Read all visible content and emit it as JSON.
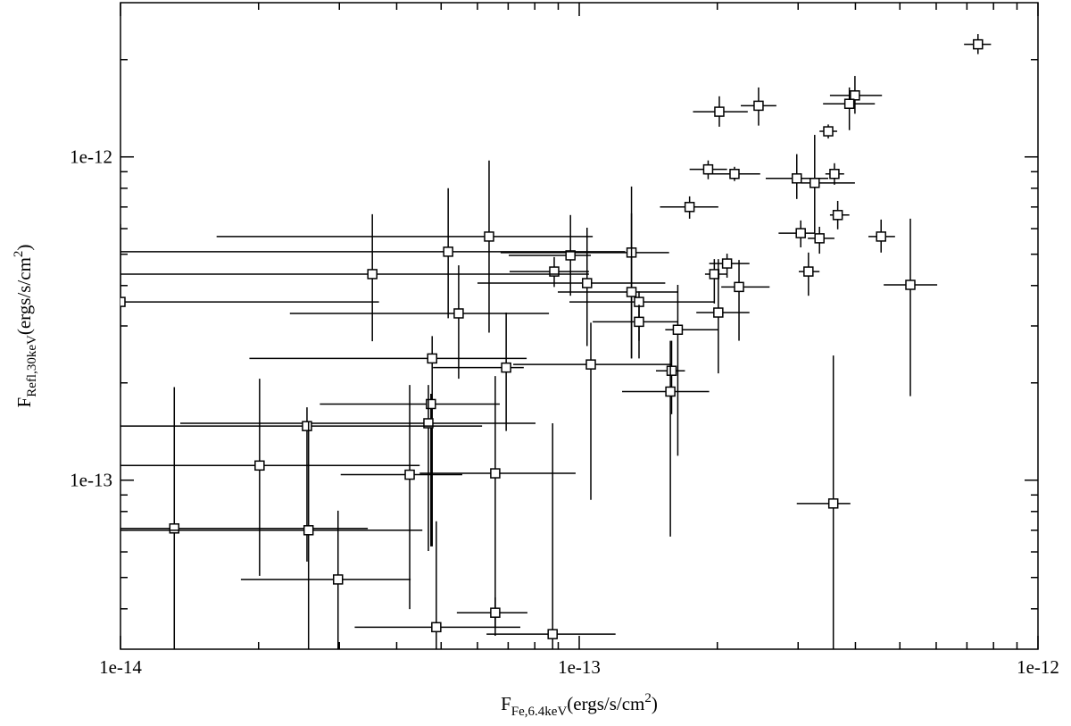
{
  "chart_data": {
    "type": "scatter",
    "xlabel": {
      "main": "F",
      "sub": "Fe,6.4keV",
      "unit": "(ergs/s/cm",
      "sup": "2",
      "close": ")"
    },
    "ylabel": {
      "main": "F",
      "sub": "Refl,30keV",
      "unit": "(ergs/s/cm",
      "sup": "2",
      "close": ")"
    },
    "xscale": "log",
    "yscale": "log",
    "xlim": [
      1e-14,
      1e-12
    ],
    "ylim": [
      3e-14,
      3e-12
    ],
    "xticks": [
      1e-14,
      1e-13,
      1e-12
    ],
    "yticks": [
      1e-13,
      1e-12
    ],
    "xminorticks": [
      2e-14,
      3e-14,
      4e-14,
      5e-14,
      6e-14,
      7e-14,
      8e-14,
      9e-14,
      2e-13,
      3e-13,
      4e-13,
      5e-13,
      6e-13,
      7e-13,
      8e-13,
      9e-13
    ],
    "yminorticks": [
      4e-14,
      5e-14,
      6e-14,
      7e-14,
      8e-14,
      9e-14,
      2e-13,
      3e-13,
      4e-13,
      5e-13,
      6e-13,
      7e-13,
      8e-13,
      9e-13,
      2e-12
    ],
    "color": "#000000",
    "x": [
      7.4e-13,
      2.02e-13,
      2.46e-13,
      3.99e-13,
      3.88e-13,
      3.49e-13,
      1.91e-13,
      2.18e-13,
      2.98e-13,
      3.6e-13,
      3.26e-13,
      1.74e-13,
      3.66e-13,
      3.04e-13,
      3.34e-13,
      4.55e-13,
      2.1e-13,
      1.97e-13,
      3.16e-13,
      5.27e-13,
      2.23e-13,
      2.01e-13,
      3.58e-13,
      1.64e-13,
      1.59e-13,
      1.58e-13,
      1.3e-13,
      1.3e-13,
      1.35e-13,
      1.35e-13,
      9.57e-14,
      8.82e-14,
      1.04e-13,
      1.06e-13,
      6.36e-14,
      5.18e-14,
      3.54e-14,
      5.46e-14,
      1e-14,
      6.93e-14,
      4.78e-14,
      4.75e-14,
      4.69e-14,
      2.55e-14,
      2.01e-14,
      4.27e-14,
      6.56e-14,
      1.31e-14,
      2.57e-14,
      2.98e-14,
      4.88e-14,
      6.56e-14,
      8.75e-14
    ],
    "x_low": [
      6.9e-13,
      1.77e-13,
      2.25e-13,
      3.52e-13,
      3.4e-13,
      3.34e-13,
      1.74e-13,
      1.88e-13,
      2.55e-13,
      3.44e-13,
      3.05e-13,
      1.5e-13,
      3.52e-13,
      2.72e-13,
      3.15e-13,
      4.27e-13,
      1.92e-13,
      1.88e-13,
      3.01e-13,
      4.61e-13,
      2.04e-13,
      1.8e-13,
      2.98e-13,
      1.54e-13,
      1.47e-13,
      1.24e-13,
      6.74e-14,
      8.98e-14,
      9.52e-14,
      1.07e-13,
      7.02e-14,
      7.05e-14,
      6e-14,
      7.18e-14,
      1.62e-14,
      1e-14,
      1e-14,
      2.34e-14,
      1e-14,
      4.8e-14,
      1.91e-14,
      2.72e-14,
      1.35e-14,
      1e-14,
      1e-14,
      3.02e-14,
      4.49e-14,
      1e-14,
      1e-14,
      1.83e-14,
      3.24e-14,
      5.41e-14,
      6.28e-14
    ],
    "x_high": [
      7.9e-13,
      2.33e-13,
      2.69e-13,
      4.57e-13,
      4.41e-13,
      3.65e-13,
      2.1e-13,
      2.48e-13,
      3.49e-13,
      3.78e-13,
      3.99e-13,
      2.01e-13,
      3.88e-13,
      3.26e-13,
      3.6e-13,
      4.88e-13,
      2.35e-13,
      2.1e-13,
      3.34e-13,
      6.03e-13,
      2.6e-13,
      2.35e-13,
      3.9e-13,
      2.01e-13,
      1.7e-13,
      1.92e-13,
      1.57e-13,
      1.64e-13,
      1.97e-13,
      1.64e-13,
      1.06e-13,
      1.05e-13,
      1.54e-13,
      1.59e-13,
      1.07e-13,
      1.26e-13,
      1.05e-13,
      8.59e-14,
      3.66e-14,
      7.57e-14,
      7.68e-14,
      6.71e-14,
      8.03e-14,
      6.14e-14,
      4.49e-14,
      5.56e-14,
      9.82e-14,
      3.46e-14,
      4.55e-14,
      4.29e-14,
      7.44e-14,
      7.71e-14,
      1.2e-13
    ],
    "values": [
      2.23e-12,
      1.38e-12,
      1.44e-12,
      1.55e-12,
      1.46e-12,
      1.2e-12,
      9.15e-13,
      8.86e-13,
      8.58e-13,
      8.86e-13,
      8.31e-13,
      7e-13,
      6.61e-13,
      5.81e-13,
      5.6e-13,
      5.67e-13,
      4.68e-13,
      4.34e-13,
      4.42e-13,
      4.02e-13,
      3.96e-13,
      3.3e-13,
      8.47e-14,
      2.92e-13,
      2.18e-13,
      1.88e-13,
      5.06e-13,
      3.82e-13,
      3.56e-13,
      3.09e-13,
      4.96e-13,
      4.42e-13,
      4.07e-13,
      2.28e-13,
      5.67e-13,
      5.09e-13,
      4.34e-13,
      3.28e-13,
      3.56e-13,
      2.23e-13,
      2.38e-13,
      1.72e-13,
      1.5e-13,
      1.47e-13,
      1.11e-13,
      1.04e-13,
      1.05e-13,
      7.09e-14,
      7e-14,
      4.93e-14,
      3.51e-14,
      3.89e-14,
      3.34e-14
    ],
    "y_low": [
      2.08e-12,
      1.24e-12,
      1.25e-12,
      1.36e-12,
      1.21e-12,
      1.14e-12,
      8.53e-13,
      8.42e-13,
      7.41e-13,
      8.2e-13,
      5.81e-13,
      6.44e-13,
      5.97e-13,
      5.25e-13,
      5.02e-13,
      5.06e-13,
      4.23e-13,
      3.52e-13,
      3.72e-13,
      1.82e-13,
      2.7e-13,
      2.14e-13,
      3e-14,
      1.19e-13,
      1.6e-13,
      6.69e-14,
      2.38e-13,
      2.38e-13,
      2.38e-13,
      2.7e-13,
      3.72e-13,
      3.96e-13,
      2.6e-13,
      8.69e-14,
      2.86e-13,
      3.17e-13,
      2.69e-13,
      2.06e-13,
      1.94e-13,
      1.42e-13,
      6.24e-14,
      6.24e-14,
      6.04e-14,
      5.6e-14,
      5.06e-14,
      3.99e-14,
      3.3e-14,
      3e-14,
      3e-14,
      3e-14,
      3e-14,
      3.51e-14,
      3e-14
    ],
    "y_high": [
      2.4e-12,
      1.54e-12,
      1.64e-12,
      1.78e-12,
      1.64e-12,
      1.26e-12,
      9.75e-13,
      9.32e-13,
      1.02e-12,
      9.56e-13,
      1.17e-12,
      7.55e-13,
      7.31e-13,
      6.36e-13,
      6.08e-13,
      6.4e-13,
      5.02e-13,
      4.83e-13,
      5.06e-13,
      6.44e-13,
      4.8e-13,
      4.83e-13,
      2.43e-13,
      4.02e-13,
      2.7e-13,
      2.7e-13,
      8.1e-13,
      6.69e-13,
      3.84e-13,
      3.49e-13,
      6.61e-13,
      4.9e-13,
      6.04e-13,
      3.07e-13,
      9.75e-13,
      8e-13,
      6.65e-13,
      4.62e-13,
      6.2e-13,
      3.3e-13,
      2.79e-13,
      1.85e-13,
      1.97e-13,
      1.68e-13,
      2.06e-13,
      1.97e-13,
      2.1e-13,
      1.94e-13,
      1.52e-13,
      8.05e-14,
      7.46e-14,
      4.34e-14,
      1.5e-13
    ]
  }
}
